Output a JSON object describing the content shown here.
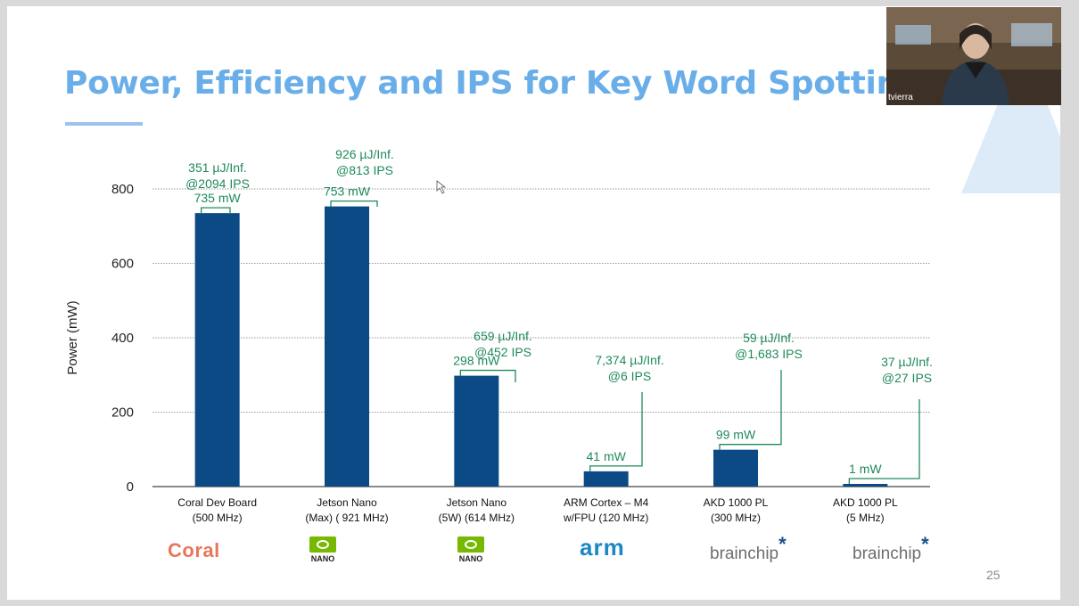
{
  "slide": {
    "title": "Power, Efficiency and IPS for Key Word Spotting (KWS)",
    "page_number": "25"
  },
  "video": {
    "participant_name": "tvierra"
  },
  "brands": {
    "coral": "Coral",
    "nano": "NANO",
    "arm": "arm",
    "brainchip": "brainchip",
    "brainchip_star": "*"
  },
  "colors": {
    "bar": "#0b4a85",
    "annotation": "#1f8a5a",
    "title": "#6aaee9",
    "grid": "#9a9a9a"
  },
  "chart_data": {
    "type": "bar",
    "ylabel": "Power (mW)",
    "ylim": [
      0,
      800
    ],
    "yticks": [
      "0",
      "200",
      "400",
      "600",
      "800"
    ],
    "grid": true,
    "categories": [
      [
        "Coral Dev Board",
        "(500 MHz)"
      ],
      [
        "Jetson Nano",
        "(Max) ( 921 MHz)"
      ],
      [
        "Jetson Nano",
        "(5W) (614 MHz)"
      ],
      [
        "ARM Cortex – M4",
        "w/FPU (120 MHz)"
      ],
      [
        "AKD 1000 PL",
        "(300 MHz)"
      ],
      [
        "AKD 1000 PL",
        "(5 MHz)"
      ]
    ],
    "values": [
      735,
      753,
      298,
      41,
      99,
      1
    ],
    "bar_labels": [
      "735 mW",
      "753 mW",
      "298 mW",
      "41 mW",
      "99 mW",
      "1 mW"
    ],
    "callouts": [
      [
        "351 µJ/Inf.",
        "@2094 IPS"
      ],
      [
        "926 µJ/Inf.",
        "@813 IPS"
      ],
      [
        "659 µJ/Inf.",
        "@452 IPS"
      ],
      [
        "7,374 µJ/Inf.",
        "@6 IPS"
      ],
      [
        "59 µJ/Inf.",
        "@1,683 IPS"
      ],
      [
        "37 µJ/Inf.",
        "@27 IPS"
      ]
    ]
  }
}
